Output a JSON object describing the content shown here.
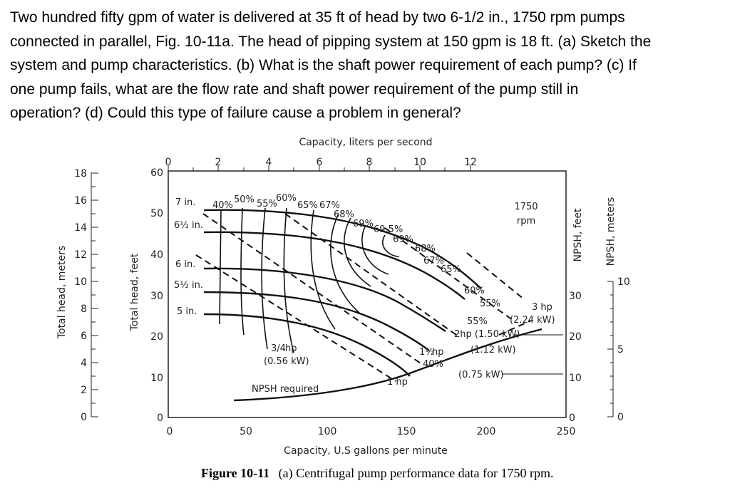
{
  "problem": {
    "lines": [
      "Two hundred fifty gpm of water is delivered at 35 ft of head by two 6-1/2 in., 1750 rpm pumps",
      "connected in parallel, Fig. 10-11a. The head of pipping system at 150 gpm is 18 ft. (a) Sketch the",
      "system and pump characteristics. (b) What is the shaft power requirement of each pump? (c) If",
      "one pump fails, what are the flow rate and shaft power requirement of the pump still in",
      "operation? (d) Could this type of failure cause a problem in general?"
    ]
  },
  "figure": {
    "top_axis_title": "Capacity, liters per second",
    "top_ticks": [
      "0",
      "2",
      "4",
      "6",
      "8",
      "10",
      "12"
    ],
    "bottom_axis_title": "Capacity, U.S gallons per minute",
    "bottom_ticks": [
      "0",
      "50",
      "100",
      "150",
      "200",
      "250"
    ],
    "left_feet_label": "Total head, feet",
    "left_feet_ticks": [
      "0",
      "10",
      "20",
      "30",
      "40",
      "50",
      "60"
    ],
    "left_m_label": "Total head, meters",
    "left_m_ticks": [
      "0",
      "2",
      "4",
      "6",
      "8",
      "10",
      "12",
      "14",
      "16",
      "18"
    ],
    "npsh_feet_label": "NPSH, feet",
    "npsh_feet_ticks": [
      "0",
      "10",
      "20",
      "30"
    ],
    "npsh_m_label": "NPSH, meters",
    "npsh_m_ticks": [
      "0",
      "5",
      "10"
    ],
    "speed": [
      "1750",
      "rpm"
    ],
    "impellers": [
      "7 in.",
      "6½ in.",
      "6 in.",
      "5½ in.",
      "5 in."
    ],
    "eff_top": [
      "40%",
      "50%",
      "55%",
      "60%",
      "65%",
      "67%",
      "68%",
      "69%",
      "69.5%",
      "69%",
      "68%",
      "67%",
      "65%",
      "60%",
      "55%",
      "55%"
    ],
    "eff_bottom": [
      "40%"
    ],
    "power": {
      "hp3": "3 hp",
      "kw3": "(2.24 kW)",
      "hp2": "2hp (1.50 kW)",
      "kw15": "(1.12 kW)",
      "hp34": "hp",
      "hp34_frac": "3/4",
      "kw34": "(0.56 kW)",
      "hp112": "hp",
      "hp112_frac": "1½",
      "hp1": "1 hp",
      "kw1": "(0.75 kW)"
    },
    "npsh_required": "NPSH required",
    "caption_bold": "Figure 10-11",
    "caption_rest": "(a) Centrifugal pump performance data for 1750 rpm."
  }
}
